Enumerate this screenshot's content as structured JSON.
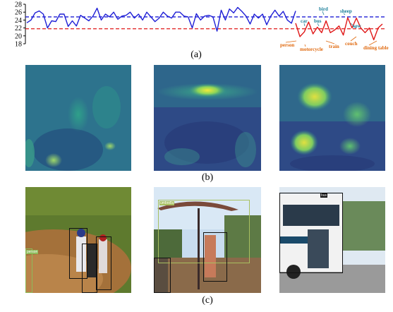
{
  "captions": {
    "a": "(a)",
    "b": "(b)",
    "c": "(c)"
  },
  "colors": {
    "blue": "#1f1fd6",
    "red": "#e01818",
    "teal": "#1b7f9a",
    "orange": "#e06a10"
  },
  "chart_data": {
    "type": "line",
    "ylim": [
      18,
      28
    ],
    "yticks": [
      18,
      20,
      22,
      24,
      26,
      28
    ],
    "grid": false,
    "series": [
      {
        "values": [
          23.3,
          24.0,
          25.8,
          26.3,
          25.5,
          22.0,
          23.8,
          23.6,
          25.5,
          25.5,
          22.4,
          23.8,
          22.5,
          25.2,
          24.5,
          23.8,
          25.0,
          27.0,
          24.0,
          25.5,
          24.8,
          26.0,
          24.2,
          25.0,
          25.2,
          26.0,
          24.5,
          25.5,
          24.0,
          26.0,
          24.8,
          23.6,
          24.5,
          26.0,
          25.0,
          24.5,
          26.0,
          26.0,
          25.0,
          24.8,
          22.0,
          25.6,
          24.0,
          25.0,
          25.2,
          24.8,
          21.2,
          26.5,
          24.0,
          26.8,
          25.8,
          27.2,
          26.2,
          25.0,
          23.0,
          25.5,
          24.5,
          25.5,
          22.8,
          25.0,
          26.5,
          25.0,
          26.2,
          24.0,
          23.2,
          26.3
        ]
      },
      {
        "values": [
          23.2,
          19.8,
          21.0,
          23.5,
          20.5,
          22.2,
          20.8,
          23.8,
          20.8,
          21.5,
          22.5,
          20.2,
          24.6,
          22.0,
          24.5,
          22.0,
          20.8,
          22.0,
          19.0,
          22.0,
          23.0
        ]
      }
    ],
    "reference_lines": [
      24.8,
      21.8
    ],
    "annotations": {
      "teal": [
        "bird",
        "sheep",
        "car",
        "bus",
        "cow"
      ],
      "orange": [
        "person",
        "motorcycle",
        "train",
        "couch",
        "dining table"
      ]
    }
  },
  "photos": {
    "baseball": {
      "label": "person"
    },
    "patio": {
      "label": "umbrella"
    },
    "bus": {
      "label": "bus"
    }
  }
}
